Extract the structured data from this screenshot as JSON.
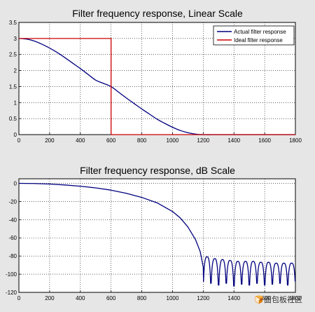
{
  "chart_data": [
    {
      "type": "line",
      "title": "Filter frequency response, Linear Scale",
      "xlabel": "",
      "ylabel": "",
      "xlim": [
        0,
        1800
      ],
      "ylim": [
        0,
        3.5
      ],
      "grid": true,
      "legend_position": "top-right",
      "x_ticks": [
        "0",
        "200",
        "400",
        "600",
        "800",
        "1000",
        "1200",
        "1400",
        "1600",
        "1800"
      ],
      "y_ticks": [
        "0",
        "0.5",
        "1",
        "1.5",
        "2",
        "2.5",
        "3",
        "3.5"
      ],
      "series": [
        {
          "name": "Actual filter response",
          "color": "#00007f",
          "x": [
            0,
            50,
            100,
            150,
            200,
            250,
            300,
            350,
            400,
            450,
            500,
            550,
            600,
            650,
            700,
            750,
            800,
            850,
            900,
            950,
            1000,
            1050,
            1100,
            1150,
            1200,
            1300,
            1400,
            1500,
            1600,
            1700,
            1800
          ],
          "y": [
            3.0,
            2.98,
            2.92,
            2.82,
            2.7,
            2.56,
            2.4,
            2.23,
            2.06,
            1.88,
            1.7,
            1.6,
            1.5,
            1.32,
            1.14,
            0.97,
            0.8,
            0.64,
            0.48,
            0.35,
            0.23,
            0.13,
            0.06,
            0.015,
            0.0,
            0.0,
            0.0,
            0.0,
            0.0,
            0.0,
            0.0
          ]
        },
        {
          "name": "Ideal filter response",
          "color": "#cc0000",
          "x": [
            0,
            600,
            600,
            1800
          ],
          "y": [
            3.0,
            3.0,
            0.0,
            0.0
          ]
        }
      ]
    },
    {
      "type": "line",
      "title": "Filter frequency response, dB Scale",
      "xlabel": "",
      "ylabel": "",
      "xlim": [
        0,
        1800
      ],
      "ylim": [
        -120,
        5
      ],
      "grid": true,
      "x_ticks": [
        "0",
        "200",
        "400",
        "600",
        "800",
        "1000",
        "1200",
        "1400",
        "1600",
        "1800"
      ],
      "y_ticks": [
        "0",
        "-20",
        "-40",
        "-60",
        "-80",
        "-100",
        "-120"
      ],
      "series": [
        {
          "color": "#00007f",
          "x": [
            0,
            100,
            200,
            300,
            400,
            500,
            600,
            700,
            800,
            900,
            1000,
            1050,
            1100,
            1150,
            1180,
            1200
          ],
          "y": [
            0,
            -0.2,
            -0.8,
            -1.8,
            -3.2,
            -5.0,
            -7.5,
            -11,
            -15.5,
            -21.5,
            -31,
            -38,
            -48,
            -62,
            -75,
            -92
          ],
          "lobe_peaks": [
            -81,
            -83,
            -84,
            -85,
            -86,
            -86,
            -86,
            -87,
            -87,
            -88,
            -88,
            -88
          ],
          "lobe_nulls": [
            -108,
            -110,
            -112,
            -110,
            -113,
            -111,
            -112,
            -110,
            -112,
            -111,
            -110,
            -112
          ],
          "lobe_period": 50
        }
      ]
    }
  ],
  "watermark": {
    "text": "🍞面包板社区"
  }
}
